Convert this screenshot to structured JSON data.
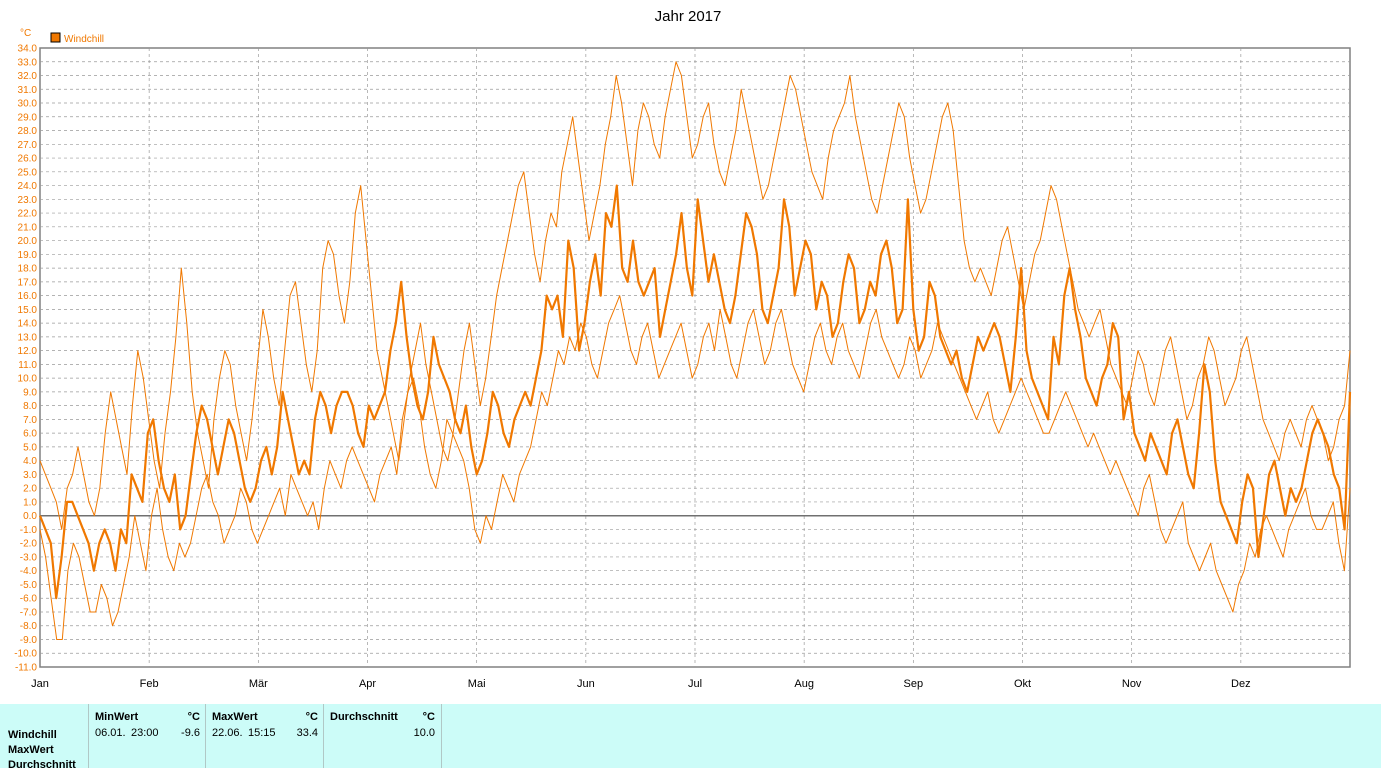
{
  "chart_data": {
    "type": "line",
    "title": "Jahr 2017",
    "y_unit": "°C",
    "ylim": [
      -11,
      34
    ],
    "y_tick_step": 1,
    "x_labels": [
      "Jan",
      "Feb",
      "Mär",
      "Apr",
      "Mai",
      "Jun",
      "Jul",
      "Aug",
      "Sep",
      "Okt",
      "Nov",
      "Dez"
    ],
    "legend": {
      "label": "Windchill",
      "color": "#f07800",
      "placement": "top-left"
    },
    "grid": true,
    "series": [
      {
        "name": "Windchill",
        "role": "mean",
        "values": [
          0,
          -1,
          -2,
          -6,
          -3,
          1,
          1,
          0,
          -1,
          -2,
          -4,
          -2,
          -1,
          -2,
          -4,
          -1,
          -2,
          3,
          2,
          1,
          6,
          7,
          4,
          2,
          1,
          3,
          -1,
          0,
          3,
          6,
          8,
          7,
          5,
          3,
          5,
          7,
          6,
          4,
          2,
          1,
          2,
          4,
          5,
          3,
          5,
          9,
          7,
          5,
          3,
          4,
          3,
          7,
          9,
          8,
          6,
          8,
          9,
          9,
          8,
          6,
          5,
          8,
          7,
          8,
          9,
          12,
          14,
          17,
          13,
          10,
          8,
          7,
          9,
          13,
          11,
          10,
          9,
          7,
          6,
          8,
          5,
          3,
          4,
          6,
          9,
          8,
          6,
          5,
          7,
          8,
          9,
          8,
          10,
          12,
          16,
          15,
          16,
          13,
          20,
          18,
          12,
          14,
          17,
          19,
          16,
          22,
          21,
          24,
          18,
          17,
          20,
          17,
          16,
          17,
          18,
          13,
          15,
          17,
          19,
          22,
          18,
          16,
          23,
          20,
          17,
          19,
          17,
          15,
          14,
          16,
          19,
          22,
          21,
          19,
          15,
          14,
          16,
          18,
          23,
          21,
          16,
          18,
          20,
          19,
          15,
          17,
          16,
          13,
          14,
          17,
          19,
          18,
          14,
          15,
          17,
          16,
          19,
          20,
          18,
          14,
          15,
          23,
          15,
          12,
          13,
          17,
          16,
          13,
          12,
          11,
          12,
          10,
          9,
          11,
          13,
          12,
          13,
          14,
          13,
          11,
          9,
          13,
          18,
          12,
          10,
          9,
          8,
          7,
          13,
          11,
          16,
          18,
          15,
          13,
          10,
          9,
          8,
          10,
          11,
          14,
          13,
          7,
          9,
          6,
          5,
          4,
          6,
          5,
          4,
          3,
          6,
          7,
          5,
          3,
          2,
          6,
          11,
          9,
          4,
          1,
          0,
          -1,
          -2,
          1,
          3,
          2,
          -3,
          0,
          3,
          4,
          2,
          0,
          2,
          1,
          2,
          4,
          6,
          7,
          6,
          5,
          3,
          2,
          -1,
          9
        ]
      },
      {
        "name": "MaxWert",
        "role": "max",
        "values": [
          4,
          3,
          2,
          1,
          -1,
          2,
          3,
          5,
          3,
          1,
          0,
          2,
          6,
          9,
          7,
          5,
          3,
          8,
          12,
          10,
          7,
          4,
          2,
          6,
          9,
          13,
          18,
          14,
          9,
          6,
          4,
          2,
          7,
          10,
          12,
          11,
          8,
          6,
          4,
          7,
          11,
          15,
          13,
          10,
          8,
          12,
          16,
          17,
          14,
          11,
          9,
          12,
          18,
          20,
          19,
          16,
          14,
          17,
          22,
          24,
          20,
          16,
          12,
          10,
          8,
          6,
          4,
          7,
          10,
          12,
          14,
          11,
          9,
          7,
          5,
          4,
          6,
          9,
          12,
          14,
          11,
          8,
          10,
          13,
          16,
          18,
          20,
          22,
          24,
          25,
          22,
          19,
          17,
          20,
          22,
          21,
          25,
          27,
          29,
          26,
          23,
          20,
          22,
          24,
          27,
          29,
          32,
          30,
          27,
          24,
          28,
          30,
          29,
          27,
          26,
          29,
          31,
          33,
          32,
          29,
          26,
          27,
          29,
          30,
          27,
          25,
          24,
          26,
          28,
          31,
          29,
          27,
          25,
          23,
          24,
          26,
          28,
          30,
          32,
          31,
          29,
          27,
          25,
          24,
          23,
          26,
          28,
          29,
          30,
          32,
          29,
          27,
          25,
          23,
          22,
          24,
          26,
          28,
          30,
          29,
          26,
          24,
          22,
          23,
          25,
          27,
          29,
          30,
          28,
          24,
          20,
          18,
          17,
          18,
          17,
          16,
          18,
          20,
          21,
          19,
          17,
          15,
          17,
          19,
          20,
          22,
          24,
          23,
          21,
          19,
          17,
          15,
          14,
          13,
          14,
          15,
          13,
          11,
          10,
          9,
          8,
          10,
          12,
          11,
          9,
          8,
          10,
          12,
          13,
          11,
          9,
          7,
          8,
          10,
          11,
          13,
          12,
          10,
          8,
          9,
          10,
          12,
          13,
          11,
          9,
          7,
          6,
          5,
          4,
          6,
          7,
          6,
          5,
          7,
          8,
          7,
          6,
          4,
          5,
          7,
          8,
          12
        ]
      },
      {
        "name": "MinWert",
        "role": "min",
        "values": [
          -1,
          -3,
          -6,
          -9,
          -9,
          -4,
          -2,
          -3,
          -5,
          -7,
          -7,
          -5,
          -6,
          -8,
          -7,
          -5,
          -3,
          0,
          -2,
          -4,
          0,
          2,
          -1,
          -3,
          -4,
          -2,
          -3,
          -2,
          0,
          2,
          3,
          1,
          0,
          -2,
          -1,
          0,
          2,
          1,
          -1,
          -2,
          -1,
          0,
          1,
          2,
          0,
          3,
          2,
          1,
          0,
          1,
          -1,
          2,
          4,
          3,
          2,
          4,
          5,
          4,
          3,
          2,
          1,
          3,
          4,
          5,
          3,
          7,
          9,
          10,
          8,
          5,
          3,
          2,
          4,
          7,
          6,
          5,
          4,
          2,
          -1,
          -2,
          0,
          -1,
          1,
          3,
          2,
          1,
          3,
          4,
          5,
          7,
          9,
          8,
          10,
          12,
          11,
          13,
          12,
          14,
          13,
          11,
          10,
          12,
          14,
          15,
          16,
          14,
          12,
          11,
          13,
          14,
          12,
          10,
          11,
          12,
          13,
          14,
          12,
          10,
          11,
          13,
          14,
          12,
          15,
          13,
          11,
          10,
          12,
          14,
          15,
          13,
          11,
          12,
          14,
          15,
          13,
          11,
          10,
          9,
          11,
          13,
          14,
          12,
          11,
          13,
          14,
          12,
          11,
          10,
          12,
          14,
          15,
          13,
          12,
          11,
          10,
          11,
          13,
          12,
          10,
          11,
          12,
          14,
          13,
          12,
          11,
          10,
          9,
          8,
          7,
          8,
          9,
          7,
          6,
          7,
          8,
          9,
          10,
          9,
          8,
          7,
          6,
          6,
          7,
          8,
          9,
          8,
          7,
          6,
          5,
          6,
          5,
          4,
          3,
          4,
          3,
          2,
          1,
          0,
          2,
          3,
          1,
          -1,
          -2,
          -1,
          0,
          1,
          -2,
          -3,
          -4,
          -3,
          -2,
          -4,
          -5,
          -6,
          -7,
          -5,
          -4,
          -2,
          -3,
          -1,
          0,
          -1,
          -2,
          -3,
          -1,
          0,
          1,
          2,
          0,
          -1,
          -1,
          0,
          1,
          -2,
          -4,
          2
        ]
      }
    ]
  },
  "stats": {
    "row_labels": [
      "Windchill",
      "MaxWert",
      "Durchschnitt"
    ],
    "columns": [
      {
        "header": "MinWert",
        "unit": "°C",
        "date": "06.01.",
        "time": "23:00",
        "value": "-9.6"
      },
      {
        "header": "MaxWert",
        "unit": "°C",
        "date": "22.06.",
        "time": "15:15",
        "value": "33.4"
      },
      {
        "header": "Durchschnitt",
        "unit": "°C",
        "value": "10.0"
      }
    ]
  }
}
